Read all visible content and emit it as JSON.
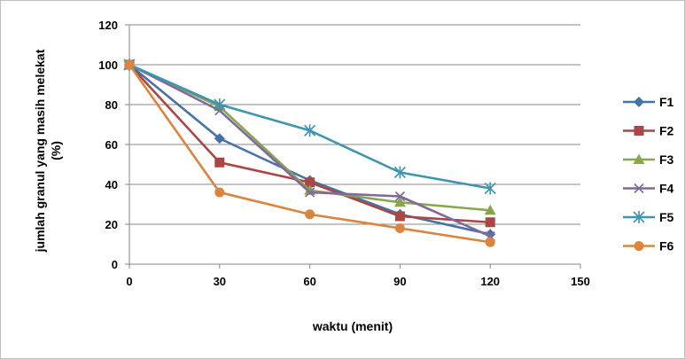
{
  "chart_data": {
    "type": "line",
    "xlabel": "waktu (menit)",
    "ylabel_line1": "jumlah granul yang masih melekat",
    "ylabel_line2": "(%)",
    "xlim": [
      0,
      150
    ],
    "ylim": [
      0,
      120
    ],
    "xticks": [
      0,
      30,
      60,
      90,
      120,
      150
    ],
    "yticks": [
      0,
      20,
      40,
      60,
      80,
      100,
      120
    ],
    "grid": "horizontal",
    "legend_position": "right",
    "x": [
      0,
      30,
      60,
      90,
      120
    ],
    "series": [
      {
        "name": "F1",
        "values": [
          100,
          63,
          42,
          25,
          15
        ],
        "color": "#4572A7",
        "marker": "diamond"
      },
      {
        "name": "F2",
        "values": [
          100,
          51,
          41,
          24,
          21
        ],
        "color": "#AA4643",
        "marker": "square"
      },
      {
        "name": "F3",
        "values": [
          100,
          79,
          37,
          31,
          27
        ],
        "color": "#89A54E",
        "marker": "triangle"
      },
      {
        "name": "F4",
        "values": [
          100,
          77,
          36,
          34,
          14
        ],
        "color": "#80699B",
        "marker": "x"
      },
      {
        "name": "F5",
        "values": [
          100,
          80,
          67,
          46,
          38
        ],
        "color": "#3D96AE",
        "marker": "star"
      },
      {
        "name": "F6",
        "values": [
          100,
          36,
          25,
          18,
          11
        ],
        "color": "#DB843D",
        "marker": "circle"
      }
    ]
  }
}
